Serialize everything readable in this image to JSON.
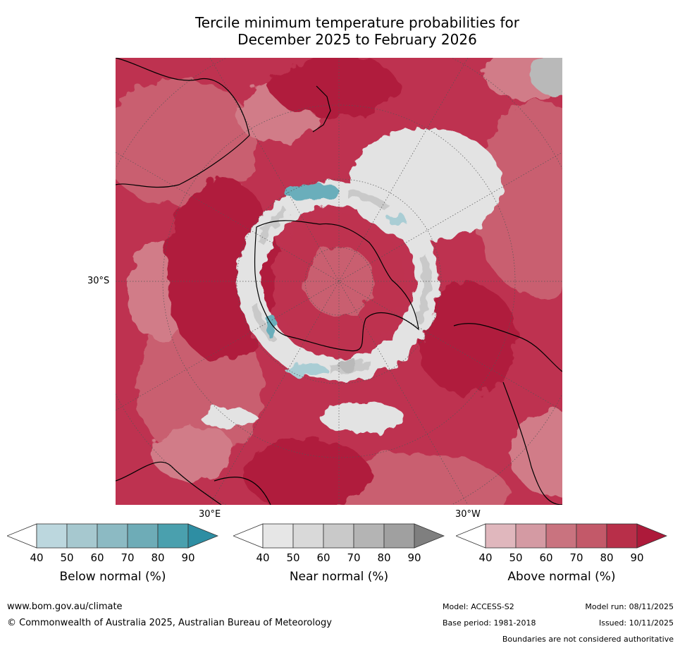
{
  "title_line1": "Tercile minimum temperature probabilities for",
  "title_line2": "December 2025 to February 2026",
  "map": {
    "lat_label": "30°S",
    "lon_label_east": "30°E",
    "lon_label_west": "30°W",
    "colors": {
      "above_90": "#b01c3c",
      "above_80": "#be3250",
      "above_70": "#c95f6f",
      "above_60": "#d17c88",
      "near": "#e3e3e3",
      "near_dark": "#b9b9b9",
      "below": "#6aaebb",
      "below_light": "#a9cdd4"
    }
  },
  "legends": [
    {
      "caption": "Below normal (%)",
      "ticks": [
        "40",
        "50",
        "60",
        "70",
        "80",
        "90"
      ],
      "colors": [
        "#bcd7de",
        "#a6c8cf",
        "#8cbac3",
        "#6eacb7",
        "#4aa0ae",
        "#2e8ea3"
      ]
    },
    {
      "caption": "Near normal (%)",
      "ticks": [
        "40",
        "50",
        "60",
        "70",
        "80",
        "90"
      ],
      "colors": [
        "#e6e6e6",
        "#d9d9d9",
        "#c9c9c9",
        "#b4b4b4",
        "#a0a0a0",
        "#7f7f7f"
      ]
    },
    {
      "caption": "Above normal (%)",
      "ticks": [
        "40",
        "50",
        "60",
        "70",
        "80",
        "90"
      ],
      "colors": [
        "#e0b7bd",
        "#d49aa3",
        "#c9737f",
        "#c35969",
        "#b82f49",
        "#ad1a3a"
      ]
    }
  ],
  "footer": {
    "website": "www.bom.gov.au/climate",
    "copyright": "© Commonwealth of Australia 2025, Australian Bureau of Meteorology",
    "model": "Model: ACCESS-S2",
    "model_run": "Model run: 08/11/2025",
    "base_period": "Base period: 1981-2018",
    "issued": "Issued: 10/11/2025",
    "boundaries": "Boundaries are not considered authoritative"
  }
}
